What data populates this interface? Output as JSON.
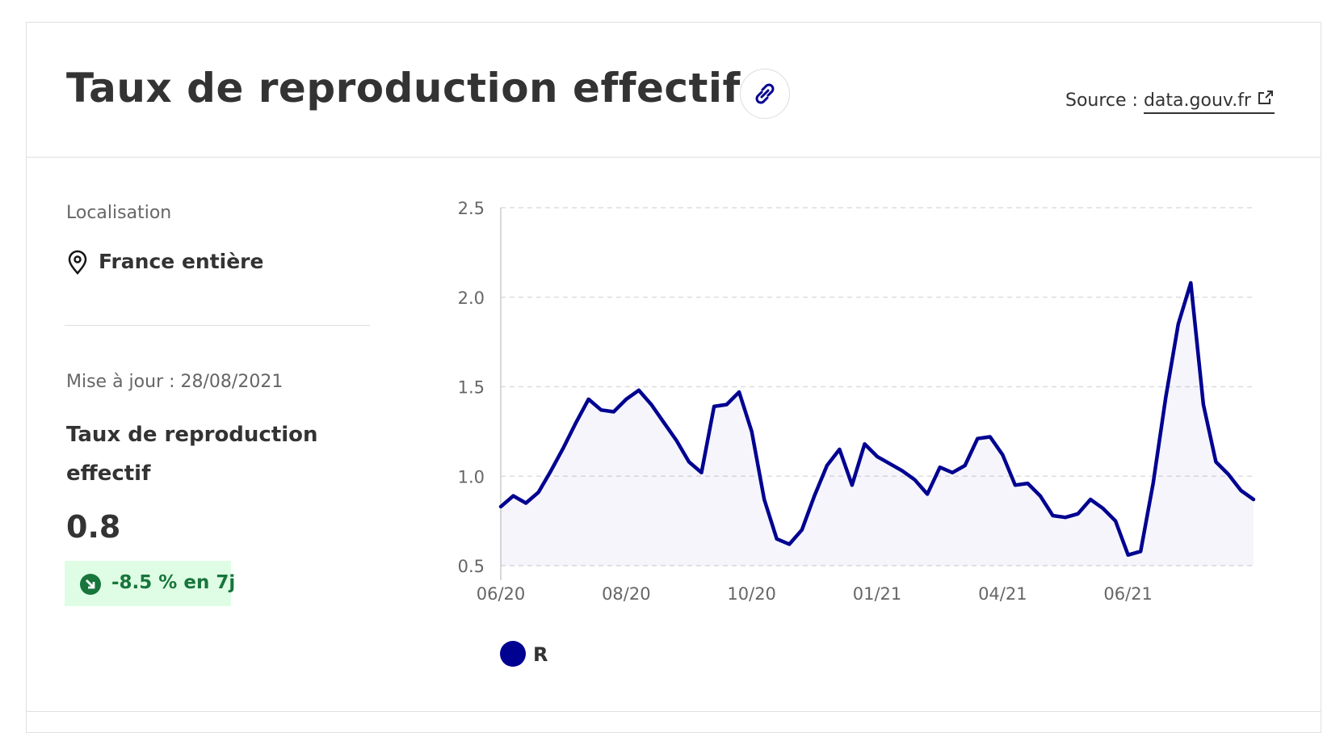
{
  "header": {
    "title": "Taux de reproduction effectif",
    "source_label": "Source :",
    "source_link": "data.gouv.fr"
  },
  "sidebar": {
    "location_label": "Localisation",
    "location": "France entière",
    "update": "Mise à jour : 28/08/2021",
    "metric": "Taux de reproduction effectif",
    "value": "0.8",
    "change": "-8.5 % en 7j"
  },
  "chart_data": {
    "type": "line",
    "categories": [
      "06/20",
      null,
      null,
      null,
      null,
      null,
      null,
      null,
      null,
      null,
      "08/20",
      null,
      null,
      null,
      null,
      null,
      null,
      null,
      null,
      null,
      "10/20",
      null,
      null,
      null,
      null,
      null,
      null,
      null,
      null,
      null,
      "01/21",
      null,
      null,
      null,
      null,
      null,
      null,
      null,
      null,
      null,
      "04/21",
      null,
      null,
      null,
      null,
      null,
      null,
      null,
      null,
      null,
      "06/21",
      null,
      null,
      null,
      null,
      null,
      null,
      null,
      null,
      null,
      null
    ],
    "series": [
      {
        "name": "R",
        "color": "#000091",
        "values": [
          0.83,
          0.89,
          0.85,
          0.91,
          1.03,
          1.16,
          1.3,
          1.43,
          1.37,
          1.36,
          1.43,
          1.48,
          1.4,
          1.3,
          1.2,
          1.08,
          1.02,
          1.39,
          1.4,
          1.47,
          1.25,
          0.87,
          0.65,
          0.62,
          0.7,
          0.89,
          1.06,
          1.15,
          0.95,
          1.18,
          1.11,
          1.07,
          1.03,
          0.98,
          0.9,
          1.05,
          1.02,
          1.06,
          1.21,
          1.22,
          1.12,
          0.95,
          0.96,
          0.89,
          0.78,
          0.77,
          0.79,
          0.87,
          0.82,
          0.75,
          0.56,
          0.58,
          0.96,
          1.44,
          1.85,
          2.08,
          1.4,
          1.08,
          1.01,
          0.92,
          0.87
        ]
      }
    ],
    "ylim": [
      0.5,
      2.5
    ],
    "yticks": [
      0.5,
      {
        "value": 1,
        "label": "1.0"
      },
      1.5,
      {
        "value": 2,
        "label": "2.0"
      },
      2.5
    ],
    "grid": true
  }
}
